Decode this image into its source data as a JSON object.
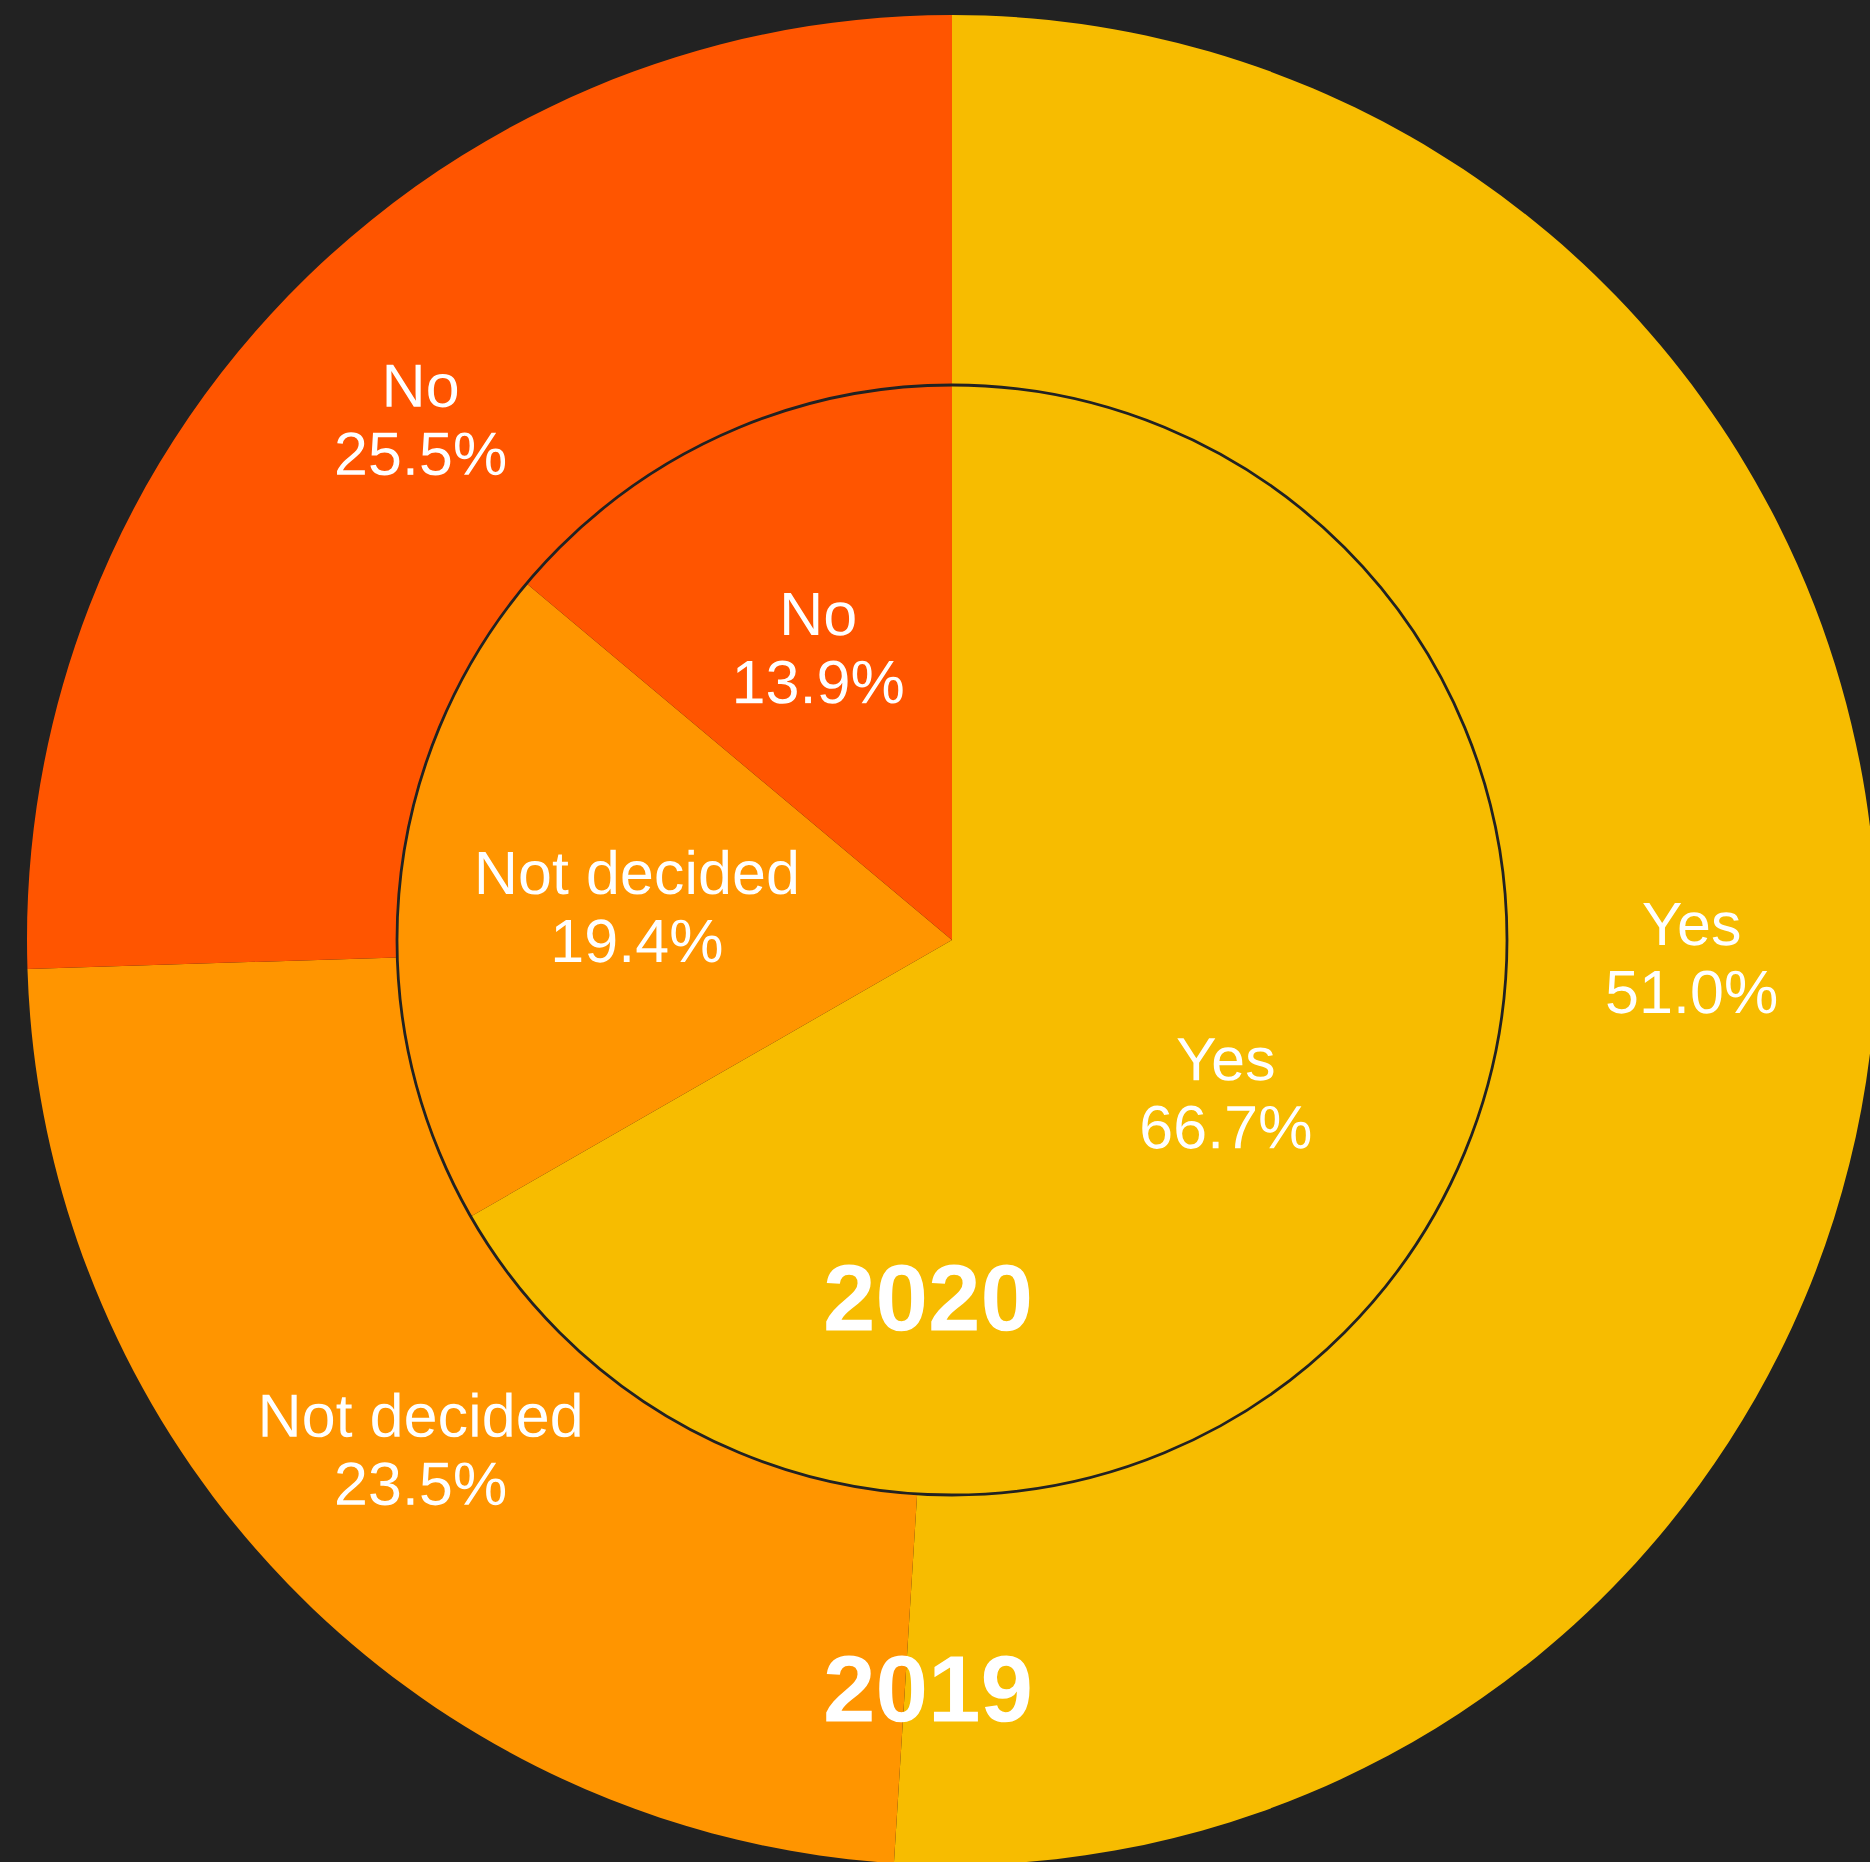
{
  "chart_data": {
    "type": "donut",
    "categories": [
      "Yes",
      "Not decided",
      "No"
    ],
    "colors": [
      "#f7bc00",
      "#ff9500",
      "#ff5500"
    ],
    "series": [
      {
        "name": "2019",
        "values": [
          51.0,
          23.5,
          25.5
        ],
        "value_labels": [
          "51.0%",
          "23.5%",
          "25.5%"
        ]
      },
      {
        "name": "2020",
        "type": "pie",
        "values": [
          66.7,
          19.4,
          13.9
        ],
        "value_labels": [
          "66.7%",
          "19.4%",
          "13.9%"
        ]
      }
    ]
  }
}
